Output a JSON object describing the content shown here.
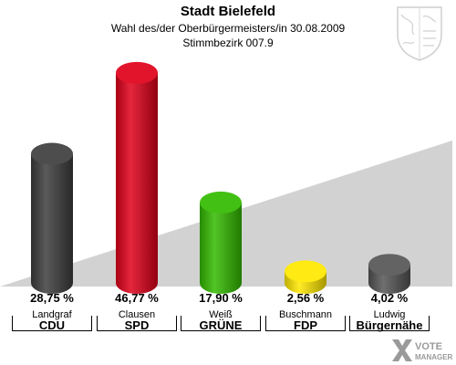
{
  "header": {
    "title": "Stadt Bielefeld",
    "subtitle": "Wahl des/der Oberbürgermeisters/in 30.08.2009",
    "district": "Stimmbezirk 007.9"
  },
  "watermark": {
    "line1": "VOTE",
    "line2": "MANAGER"
  },
  "chart_data": {
    "type": "bar",
    "title": "Stadt Bielefeld",
    "subtitle": "Wahl des/der Oberbürgermeisters/in 30.08.2009",
    "ylim": [
      0,
      50
    ],
    "categories": [
      "Landgraf",
      "Clausen",
      "Weiß",
      "Buschmann",
      "Ludwig"
    ],
    "parties": [
      "CDU",
      "SPD",
      "GRÜNE",
      "FDP",
      "Bürgernähe"
    ],
    "values": [
      28.75,
      46.77,
      17.9,
      2.56,
      4.02
    ],
    "value_labels": [
      "28,75 %",
      "46,77 %",
      "17,90 %",
      "2,56 %",
      "4,02 %"
    ],
    "colors": [
      "#3d3d3d",
      "#e0001a",
      "#33bb00",
      "#ffe800",
      "#555555"
    ],
    "legend": "none",
    "grid": false
  }
}
